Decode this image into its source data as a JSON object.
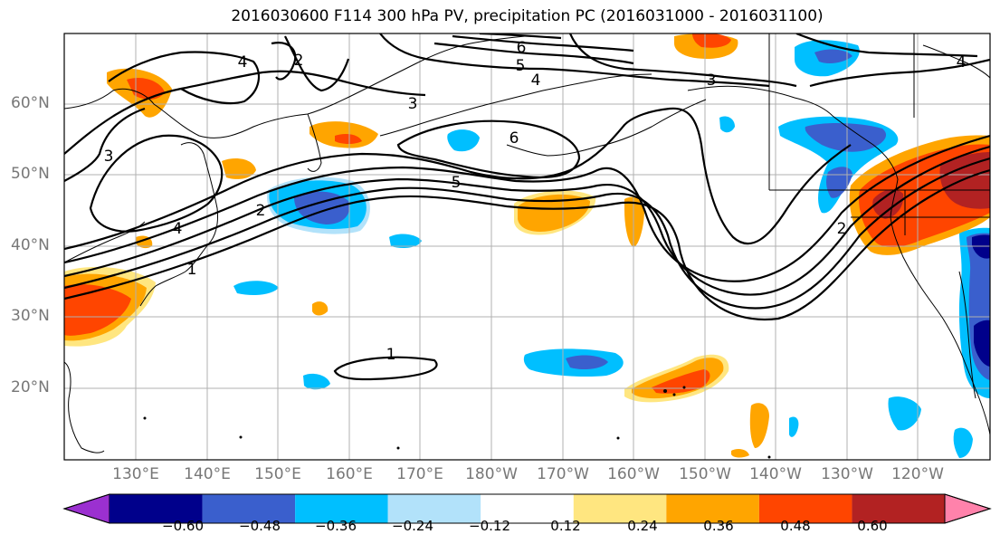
{
  "title": "2016030600 F114 300 hPa PV, precipitation PC (2016031000 - 2016031100)",
  "lat_labels": [
    "60°N",
    "50°N",
    "40°N",
    "30°N",
    "20°N"
  ],
  "lon_labels": [
    "130°E",
    "140°E",
    "150°E",
    "160°E",
    "170°E",
    "180°W",
    "170°W",
    "160°W",
    "150°W",
    "140°W",
    "130°W",
    "120°W"
  ],
  "colorbar": {
    "ticks": [
      "−0.60",
      "−0.48",
      "−0.36",
      "−0.24",
      "−0.12",
      "0.12",
      "0.24",
      "0.36",
      "0.48",
      "0.60"
    ],
    "colors": [
      "#9b30d0",
      "#00008b",
      "#3a5fcd",
      "#00bfff",
      "#b2e2fa",
      "#ffffff",
      "#ffe680",
      "#ffa500",
      "#ff4500",
      "#b22222",
      "#ff82ab"
    ]
  },
  "contour_labels": [
    "1",
    "2",
    "3",
    "4",
    "5",
    "6",
    "1",
    "2",
    "3",
    "4",
    "5",
    "6",
    "4",
    "3",
    "2",
    "4"
  ]
}
